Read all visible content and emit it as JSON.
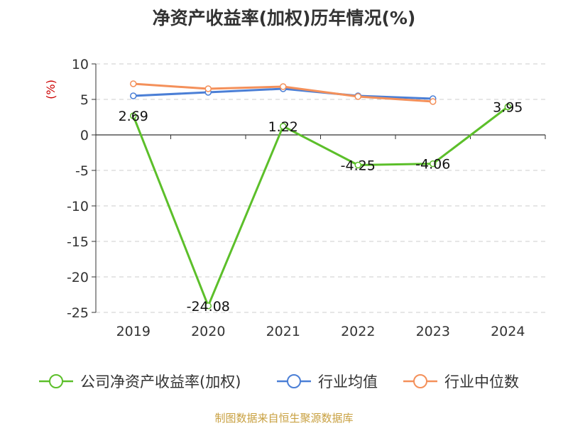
{
  "chart_data": {
    "type": "line",
    "title": "净资产收益率(加权)历年情况(%)",
    "ylabel": "(%)",
    "categories": [
      "2019",
      "2020",
      "2021",
      "2022",
      "2023",
      "2024"
    ],
    "y_ticks": [
      "10",
      "5",
      "0",
      "-5",
      "-10",
      "-15",
      "-20",
      "-25"
    ],
    "ylim": [
      -25,
      10
    ],
    "grid": true,
    "legend_position": "bottom",
    "series": [
      {
        "name": "公司净资产收益率(加权)",
        "color": "#5cbf2a",
        "values": [
          2.69,
          -24.08,
          1.22,
          -4.25,
          -4.06,
          3.95
        ],
        "labels": [
          "2.69",
          "-24.08",
          "1.22",
          "-4.25",
          "-4.06",
          "3.95"
        ]
      },
      {
        "name": "行业均值",
        "color": "#4b7fd6",
        "values": [
          5.5,
          6.0,
          6.5,
          5.5,
          5.1,
          null
        ]
      },
      {
        "name": "行业中位数",
        "color": "#f4905a",
        "values": [
          7.2,
          6.5,
          6.8,
          5.4,
          4.7,
          null
        ]
      }
    ]
  },
  "source": "制图数据来自恒生聚源数据库"
}
